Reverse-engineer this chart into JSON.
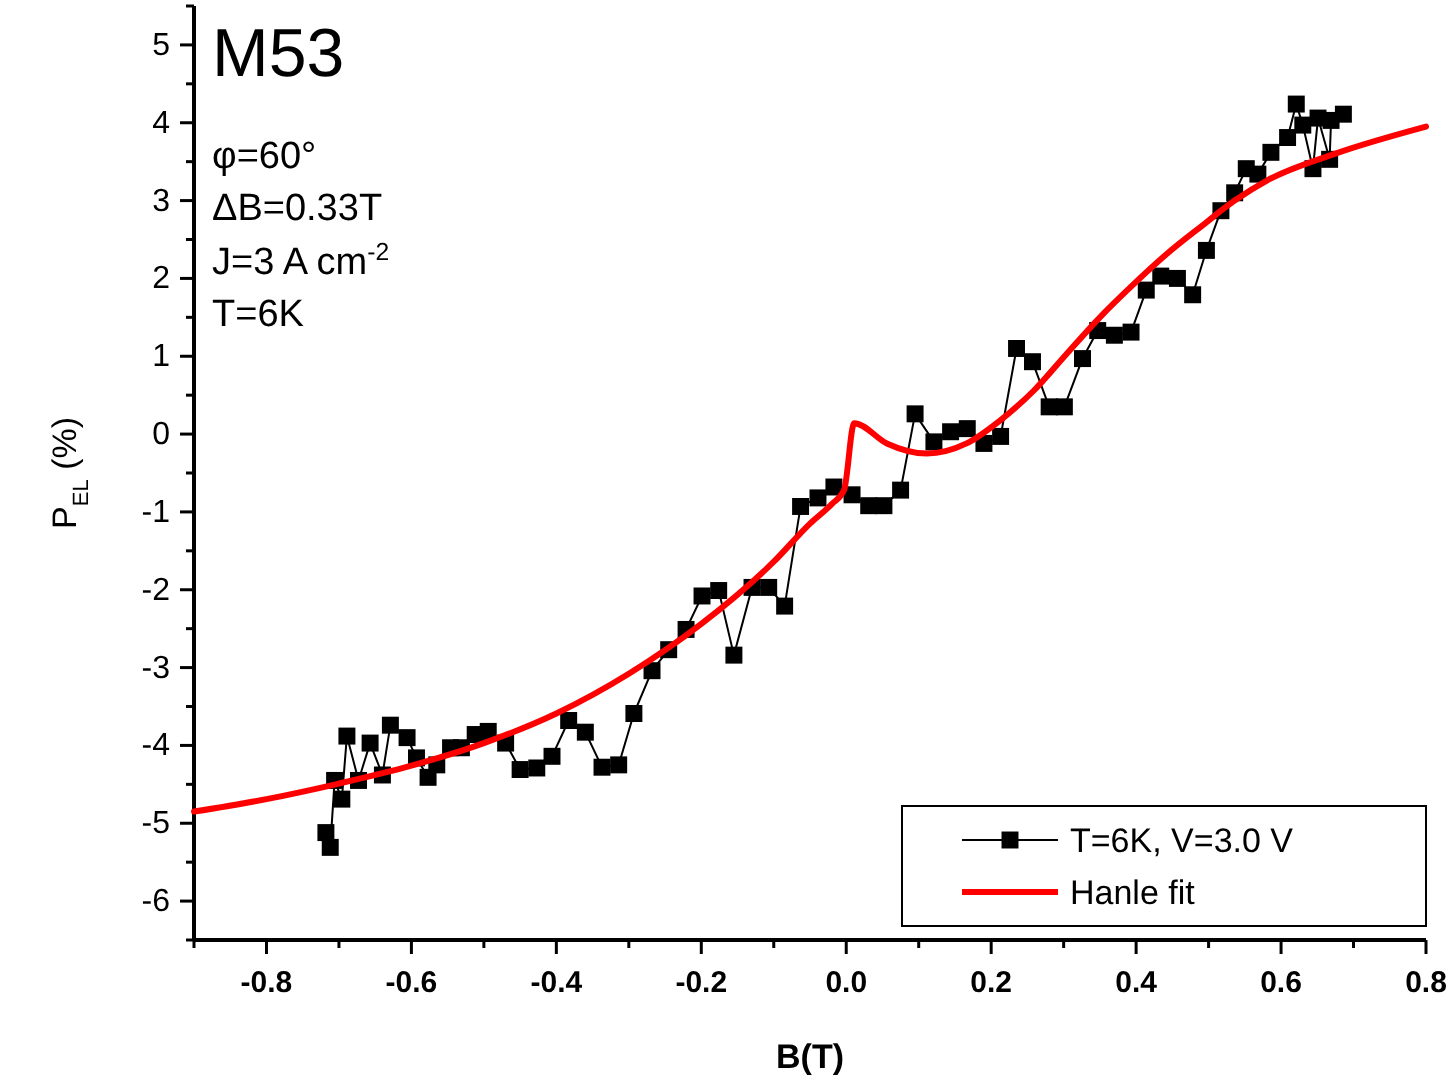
{
  "chart_data": {
    "type": "line",
    "xlabel": "B(T)",
    "ylabel": "P$_{EL}$ (%)",
    "annotations": [
      "M53",
      "φ=60°",
      "ΔB=0.33T",
      "J=3 A cm$^{-2}$",
      "T=6K"
    ],
    "xlim": [
      -0.9,
      0.8
    ],
    "ylim": [
      -6.5,
      5.5
    ],
    "xticks": [
      {
        "value": -0.9,
        "label": null
      },
      -0.8,
      {
        "value": -0.7,
        "label": null
      },
      -0.6,
      {
        "value": -0.5,
        "label": null
      },
      -0.4,
      {
        "value": -0.3,
        "label": null
      },
      -0.2,
      {
        "value": -0.1,
        "label": null
      },
      {
        "value": 0,
        "label": "0.0"
      },
      {
        "value": 0.1,
        "label": null
      },
      0.2,
      {
        "value": 0.3,
        "label": null
      },
      0.4,
      {
        "value": 0.5,
        "label": null
      },
      0.6,
      {
        "value": 0.7,
        "label": null
      },
      0.8
    ],
    "yticks": [
      {
        "value": -6.5,
        "label": null
      },
      -6,
      {
        "value": -5.5,
        "label": null
      },
      -5,
      {
        "value": -4.5,
        "label": null
      },
      -4,
      {
        "value": -3.5,
        "label": null
      },
      -3,
      {
        "value": -2.5,
        "label": null
      },
      -2,
      {
        "value": -1.5,
        "label": null
      },
      -1,
      {
        "value": -0.5,
        "label": null
      },
      0,
      {
        "value": 0.5,
        "label": null
      },
      1,
      {
        "value": 1.5,
        "label": null
      },
      2,
      {
        "value": 2.5,
        "label": null
      },
      3,
      {
        "value": 3.5,
        "label": null
      },
      4,
      {
        "value": 4.5,
        "label": null
      },
      5,
      {
        "value": 5.5,
        "label": null
      }
    ],
    "grid": false,
    "legend": "bottom right",
    "series": [
      {
        "name": "T=6K, V=3.0 V",
        "color": "#000000",
        "marker": "square",
        "x": [
          -0.718,
          -0.712,
          -0.706,
          -0.696,
          -0.689,
          -0.673,
          -0.657,
          -0.64,
          -0.629,
          -0.606,
          -0.593,
          -0.577,
          -0.565,
          -0.546,
          -0.531,
          -0.512,
          -0.494,
          -0.47,
          -0.45,
          -0.427,
          -0.406,
          -0.383,
          -0.36,
          -0.337,
          -0.314,
          -0.293,
          -0.268,
          -0.245,
          -0.221,
          -0.199,
          -0.176,
          -0.155,
          -0.13,
          -0.107,
          -0.085,
          -0.063,
          -0.039,
          -0.017,
          0.008,
          0.031,
          0.052,
          0.075,
          0.095,
          0.121,
          0.144,
          0.167,
          0.19,
          0.213,
          0.235,
          0.257,
          0.28,
          0.301,
          0.326,
          0.347,
          0.37,
          0.393,
          0.414,
          0.434,
          0.457,
          0.478,
          0.497,
          0.517,
          0.536,
          0.552,
          0.568,
          0.586,
          0.609,
          0.621,
          0.63,
          0.644,
          0.651,
          0.667,
          0.669,
          0.686
        ],
        "values": [
          -5.12,
          -5.31,
          -4.45,
          -4.69,
          -3.88,
          -4.45,
          -3.97,
          -4.38,
          -3.74,
          -3.9,
          -4.16,
          -4.41,
          -4.25,
          -4.03,
          -4.03,
          -3.86,
          -3.82,
          -3.97,
          -4.31,
          -4.29,
          -4.14,
          -3.68,
          -3.83,
          -4.28,
          -4.25,
          -3.59,
          -3.04,
          -2.77,
          -2.51,
          -2.08,
          -2.01,
          -2.84,
          -1.97,
          -1.97,
          -2.21,
          -0.93,
          -0.82,
          -0.68,
          -0.78,
          -0.92,
          -0.92,
          -0.72,
          0.26,
          -0.1,
          0.03,
          0.07,
          -0.12,
          -0.03,
          1.1,
          0.93,
          0.35,
          0.35,
          0.97,
          1.33,
          1.27,
          1.31,
          1.85,
          2.03,
          2.0,
          1.79,
          2.36,
          2.87,
          3.1,
          3.41,
          3.34,
          3.62,
          3.81,
          4.24,
          3.97,
          3.41,
          4.06,
          3.53,
          4.03,
          4.11
        ]
      },
      {
        "name": "Hanle fit",
        "color": "#ff0000",
        "marker": "none",
        "x": [
          -0.9,
          -0.8,
          -0.7,
          -0.6,
          -0.5,
          -0.4,
          -0.3,
          -0.2,
          -0.1,
          -0.05,
          -0.02,
          -0.003,
          0.011,
          0.056,
          0.111,
          0.166,
          0.213,
          0.259,
          0.304,
          0.351,
          0.397,
          0.443,
          0.49,
          0.536,
          0.581,
          0.674,
          0.8
        ],
        "values": [
          -4.85,
          -4.69,
          -4.49,
          -4.26,
          -3.97,
          -3.59,
          -3.08,
          -2.44,
          -1.64,
          -1.15,
          -0.9,
          -0.72,
          0.14,
          -0.12,
          -0.25,
          -0.12,
          0.18,
          0.56,
          1.03,
          1.51,
          1.93,
          2.32,
          2.67,
          3.0,
          3.26,
          3.6,
          3.95
        ]
      }
    ]
  }
}
